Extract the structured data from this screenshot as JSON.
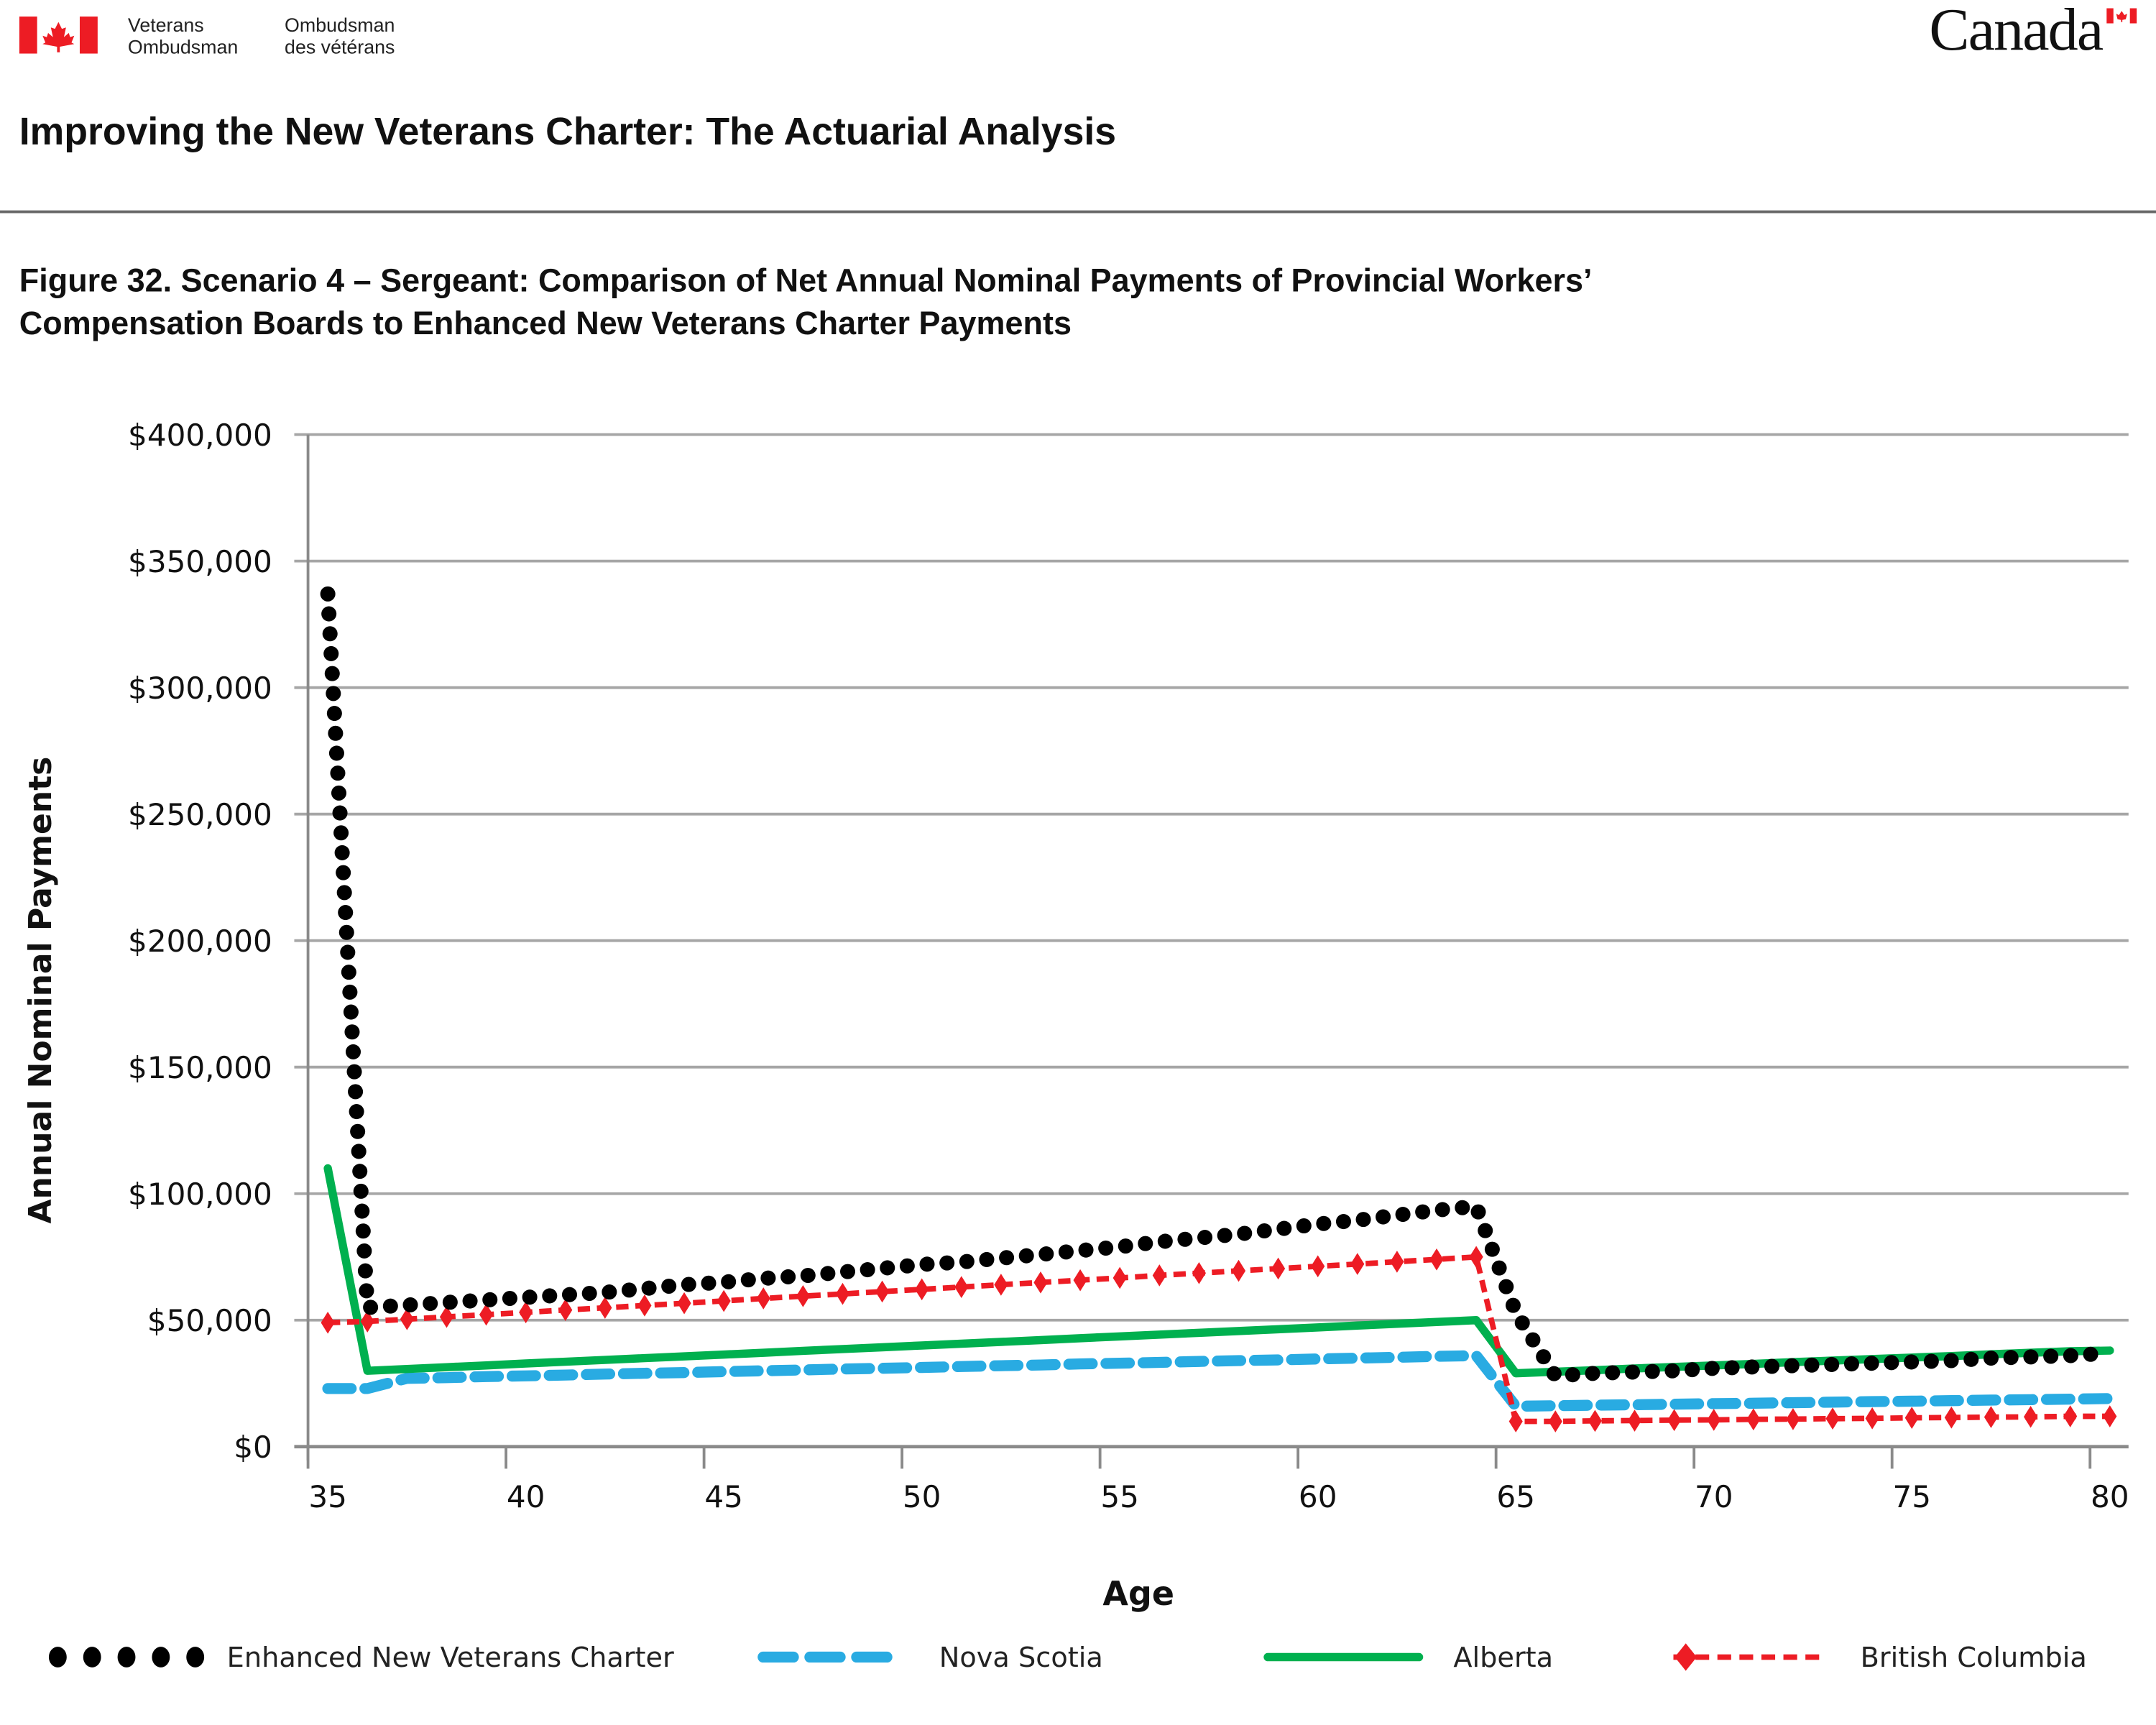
{
  "header": {
    "logo_en_line1": "Veterans",
    "logo_en_line2": "Ombudsman",
    "logo_fr_line1": "Ombudsman",
    "logo_fr_line2": "des vétérans",
    "wordmark": "Canada",
    "brand_red": "#ed1c24"
  },
  "page_title": "Improving the New Veterans Charter: The Actuarial Analysis",
  "figure_title_line1": "Figure 32. Scenario 4 – Sergeant: Comparison of Net Annual Nominal Payments of Provincial Workers’",
  "figure_title_line2": "Compensation Boards to Enhanced New Veterans Charter Payments",
  "chart_data": {
    "type": "line",
    "xlabel": "Age",
    "ylabel": "Annual Nominal Payments",
    "xlim": [
      35,
      80
    ],
    "ylim": [
      0,
      400000
    ],
    "x_ticks": [
      "35",
      "40",
      "45",
      "50",
      "55",
      "60",
      "65",
      "70",
      "75",
      "80"
    ],
    "y_ticks": [
      "$0",
      "$50,000",
      "$100,000",
      "$150,000",
      "$200,000",
      "$250,000",
      "$300,000",
      "$350,000",
      "$400,000"
    ],
    "grid": "horizontal",
    "legend_position": "bottom",
    "x": [
      35,
      36,
      37,
      38,
      39,
      40,
      41,
      42,
      43,
      44,
      45,
      46,
      47,
      48,
      49,
      50,
      51,
      52,
      53,
      54,
      55,
      56,
      57,
      58,
      59,
      60,
      61,
      62,
      63,
      64,
      65,
      66,
      67,
      68,
      69,
      70,
      71,
      72,
      73,
      74,
      75,
      76,
      77,
      78,
      79,
      80
    ],
    "y_unit_multiplier": 1000,
    "series": [
      {
        "name": "Enhanced New Veterans Charter",
        "color": "#000000",
        "style": "dotted",
        "values": [
          337,
          55,
          56,
          57,
          58,
          59,
          60,
          61,
          62.5,
          64,
          65,
          66.5,
          67.5,
          69,
          70.5,
          72,
          73,
          74.5,
          76,
          77.5,
          79,
          81,
          82.5,
          84,
          86,
          88,
          89.5,
          91.5,
          93.5,
          95,
          53,
          28,
          29,
          29.5,
          30,
          31,
          31.5,
          32,
          32.5,
          33,
          33.5,
          34,
          35,
          35.5,
          36,
          37
        ]
      },
      {
        "name": "Nova Scotia",
        "color": "#29abe2",
        "style": "dashed",
        "values": [
          23,
          23,
          27,
          27.3,
          27.7,
          28,
          28.3,
          28.7,
          29,
          29.3,
          29.7,
          30,
          30.3,
          30.7,
          31,
          31.3,
          31.7,
          32,
          32.3,
          32.7,
          33,
          33.3,
          33.7,
          34,
          34.3,
          34.7,
          35,
          35.3,
          35.7,
          36,
          16,
          16.2,
          16.4,
          16.6,
          16.8,
          17,
          17.2,
          17.4,
          17.6,
          17.8,
          18,
          18.2,
          18.4,
          18.6,
          18.8,
          19
        ]
      },
      {
        "name": "Alberta",
        "color": "#00b04f",
        "style": "solid",
        "values": [
          110,
          30,
          30.7,
          31.4,
          32.1,
          32.9,
          33.6,
          34.3,
          35,
          35.7,
          36.4,
          37.1,
          37.9,
          38.6,
          39.3,
          40,
          40.7,
          41.4,
          42.1,
          42.9,
          43.6,
          44.3,
          45,
          45.7,
          46.4,
          47.1,
          47.9,
          48.6,
          49.3,
          50,
          29,
          29.6,
          30.2,
          30.9,
          31.5,
          32.1,
          32.7,
          33.4,
          34,
          34.6,
          35.2,
          35.8,
          36.5,
          37.1,
          37.7,
          38
        ]
      },
      {
        "name": "British Columbia",
        "color": "#ed1c24",
        "style": "dashed-diamond",
        "values": [
          49,
          49.5,
          50.4,
          51.3,
          52.2,
          53.1,
          54,
          54.9,
          55.8,
          56.7,
          57.6,
          58.6,
          59.5,
          60.4,
          61.3,
          62.2,
          63.1,
          64,
          64.9,
          65.8,
          66.7,
          67.7,
          68.6,
          69.5,
          70.4,
          71.3,
          72.2,
          73.1,
          74,
          75,
          10,
          10,
          10.2,
          10.3,
          10.5,
          10.6,
          10.8,
          10.9,
          11.1,
          11.2,
          11.4,
          11.5,
          11.7,
          11.8,
          12,
          12
        ]
      }
    ]
  }
}
